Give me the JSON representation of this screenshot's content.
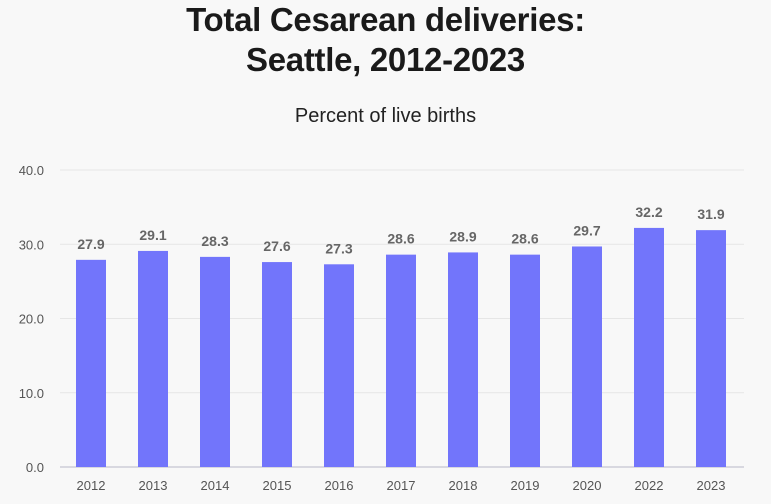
{
  "chart_data": {
    "type": "bar",
    "title_lines": [
      "Total Cesarean deliveries:",
      "Seattle, 2012-2023"
    ],
    "subtitle": "Percent of live births",
    "xlabel": "",
    "ylabel": "",
    "categories": [
      "2012",
      "2013",
      "2014",
      "2015",
      "2016",
      "2017",
      "2018",
      "2019",
      "2020",
      "2022",
      "2023"
    ],
    "values": [
      27.9,
      29.1,
      28.3,
      27.6,
      27.3,
      28.6,
      28.9,
      28.6,
      29.7,
      32.2,
      31.9
    ],
    "data_labels": [
      "27.9",
      "29.1",
      "28.3",
      "27.6",
      "27.3",
      "28.6",
      "28.9",
      "28.6",
      "29.7",
      "32.2",
      "31.9"
    ],
    "ylim": [
      0,
      40
    ],
    "yticks": [
      "0.0",
      "10.0",
      "20.0",
      "30.0",
      "40.0"
    ],
    "grid": true,
    "legend": "none",
    "colors": {
      "bar": "#7275fb",
      "label": "#666666",
      "grid": "#e6e6e6"
    }
  }
}
